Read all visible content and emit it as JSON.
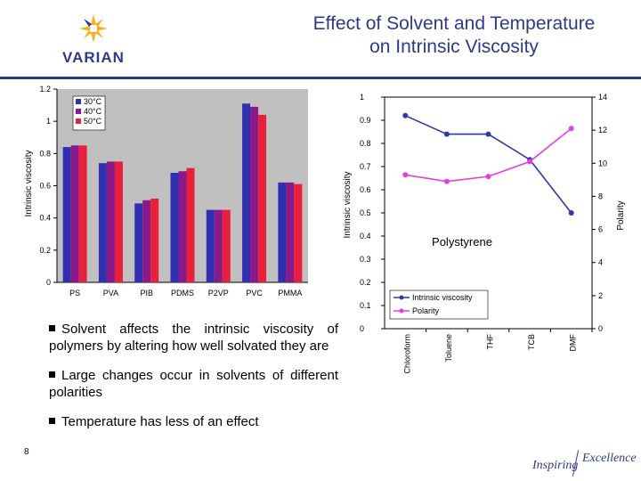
{
  "header": {
    "title_line1": "Effect of Solvent and Temperature",
    "title_line2": "on Intrinsic Viscosity",
    "logo_text": "VARIAN"
  },
  "colors": {
    "brand": "#2e3a87",
    "series_30": "#e81e3d",
    "series_40": "#e81e3d",
    "series_50": "#e81e3d",
    "bar_30": "#2f2fb0",
    "bar_40": "#8a1a8a",
    "bar_50": "#e8203c",
    "line_viscosity": "#2c3aa8",
    "line_polarity": "#e040e0"
  },
  "chart_data": [
    {
      "type": "bar",
      "ylabel": "Intrinsic viscosity",
      "ylim": [
        0,
        1.2
      ],
      "yticks": [
        "0",
        "0.2",
        "0.4",
        "0.6",
        "0.8",
        "1",
        "1.2"
      ],
      "categories": [
        "PS",
        "PVA",
        "PIB",
        "PDMS",
        "P2VP",
        "PVC",
        "PMMA"
      ],
      "legend_position": "top-left",
      "series": [
        {
          "name": "30°C",
          "values": [
            0.84,
            0.74,
            0.49,
            0.68,
            0.45,
            1.11,
            0.62
          ]
        },
        {
          "name": "40°C",
          "values": [
            0.85,
            0.75,
            0.51,
            0.69,
            0.45,
            1.09,
            0.62
          ]
        },
        {
          "name": "50°C",
          "values": [
            0.85,
            0.75,
            0.52,
            0.71,
            0.45,
            1.04,
            0.61
          ]
        }
      ]
    },
    {
      "type": "line",
      "title": "Polystyrene",
      "categories": [
        "Chloroform",
        "Toluene",
        "THF",
        "TCB",
        "DMF"
      ],
      "ylabel": "Intrinsic viscosity",
      "ylim": [
        0,
        1
      ],
      "yticks": [
        "0",
        "0.1",
        "0.2",
        "0.3",
        "0.4",
        "0.5",
        "0.6",
        "0.7",
        "0.8",
        "0.9",
        "1"
      ],
      "y2label": "Polarity",
      "y2lim": [
        0,
        14
      ],
      "y2ticks": [
        "0",
        "2",
        "4",
        "6",
        "8",
        "10",
        "12",
        "14"
      ],
      "legend_position": "bottom-left",
      "series": [
        {
          "name": "Intrinsic viscosity",
          "axis": "left",
          "values": [
            0.92,
            0.84,
            0.84,
            0.73,
            0.5
          ]
        },
        {
          "name": "Polarity",
          "axis": "right",
          "values": [
            9.3,
            8.9,
            9.2,
            10.1,
            12.1
          ]
        }
      ]
    }
  ],
  "bullets": [
    "Solvent affects the intrinsic viscosity of polymers by altering how well solvated they are",
    "Large changes occur in solvents of different polarities",
    "Temperature has less of an effect"
  ],
  "footer": {
    "page_number": "8",
    "brand_word1": "Inspiring",
    "brand_word2": "Excellence"
  }
}
